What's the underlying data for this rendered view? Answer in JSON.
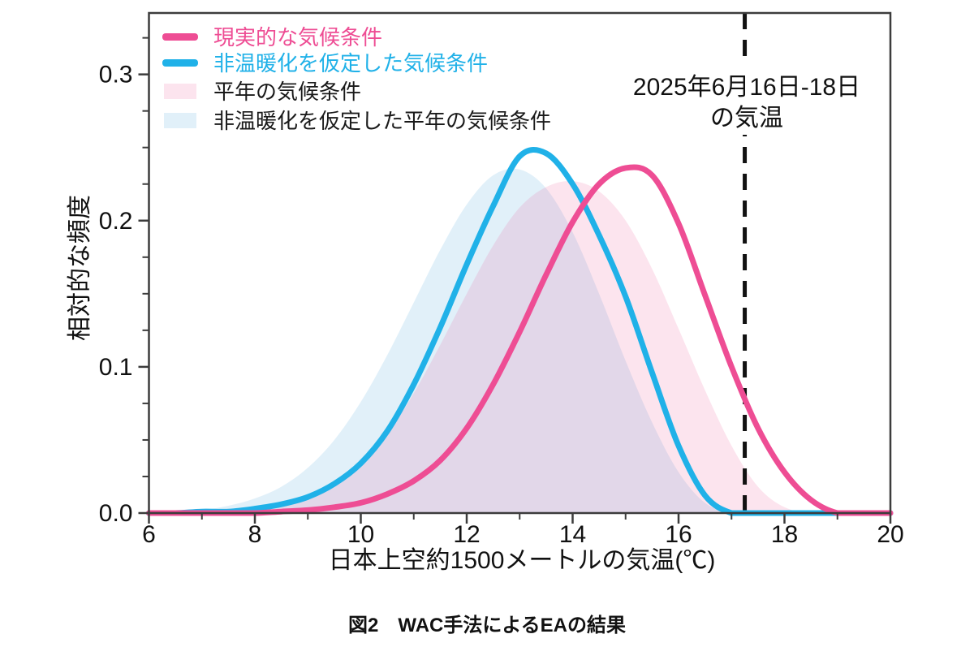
{
  "figure": {
    "caption": "図2　WAC手法によるEAの結果"
  },
  "colors": {
    "axis": "#3c3c3c",
    "text": "#111111",
    "annotation_line": "#111111",
    "pink_line": "#ee4d94",
    "blue_line": "#20b1e8",
    "pink_fill": "rgba(238,77,138,0.15)",
    "blue_fill": "rgba(90,170,220,0.18)"
  },
  "chart_data": {
    "type": "area",
    "title": "",
    "xlabel": "日本上空約1500メートルの気温(℃)",
    "ylabel": "相対的な頻度",
    "xlim": [
      6,
      20
    ],
    "ylim": [
      0,
      0.342
    ],
    "grid": false,
    "legend_position": "top-left",
    "x_major_ticks": [
      6,
      8,
      10,
      12,
      14,
      16,
      18,
      20
    ],
    "x_tick_labels": [
      "6",
      "8",
      "10",
      "12",
      "14",
      "16",
      "18",
      "20"
    ],
    "x_minor_ticks": [
      7,
      9,
      11,
      13,
      15,
      17,
      19
    ],
    "y_major_ticks": [
      0,
      0.1,
      0.2,
      0.3
    ],
    "y_tick_labels": [
      "0.0",
      "0.1",
      "0.2",
      "0.3"
    ],
    "y_minor_ticks": [
      0.025,
      0.05,
      0.075,
      0.125,
      0.15,
      0.175,
      0.225,
      0.25,
      0.275,
      0.325
    ],
    "x": [
      6,
      6.5,
      7,
      7.5,
      8,
      8.5,
      9,
      9.5,
      10,
      10.5,
      11,
      11.5,
      12,
      12.5,
      13,
      13.5,
      14,
      14.5,
      15,
      15.5,
      16,
      16.5,
      17,
      17.5,
      18,
      18.5,
      19,
      19.5,
      20
    ],
    "series": [
      {
        "name": "現実的な気候条件",
        "style": "line",
        "color": "#ee4d94",
        "peak": {
          "x": 15.1,
          "y": 0.237
        },
        "z": 3,
        "values": [
          0,
          0,
          0,
          0,
          0,
          0.001,
          0.002,
          0.004,
          0.007,
          0.013,
          0.022,
          0.036,
          0.058,
          0.088,
          0.124,
          0.163,
          0.199,
          0.225,
          0.236,
          0.231,
          0.198,
          0.149,
          0.1,
          0.058,
          0.028,
          0.009,
          0,
          0,
          0
        ]
      },
      {
        "name": "非温暖化を仮定した気候条件",
        "style": "line",
        "color": "#20b1e8",
        "peak": {
          "x": 13.1,
          "y": 0.248
        },
        "z": 2,
        "values": [
          0,
          0,
          0.001,
          0.001,
          0.003,
          0.006,
          0.011,
          0.02,
          0.034,
          0.056,
          0.088,
          0.127,
          0.17,
          0.21,
          0.244,
          0.246,
          0.225,
          0.19,
          0.148,
          0.096,
          0.046,
          0.012,
          0,
          0,
          0,
          0,
          0,
          0,
          0
        ]
      },
      {
        "name": "平年の気候条件",
        "style": "area",
        "color": "rgba(238,77,138,0.15)",
        "peak": {
          "x": 14.2,
          "y": 0.227
        },
        "z": 1,
        "values": [
          0,
          0,
          0,
          0.001,
          0.003,
          0.006,
          0.011,
          0.02,
          0.034,
          0.054,
          0.082,
          0.115,
          0.15,
          0.183,
          0.209,
          0.223,
          0.227,
          0.22,
          0.2,
          0.167,
          0.126,
          0.084,
          0.046,
          0.018,
          0.004,
          0,
          0,
          0,
          0
        ]
      },
      {
        "name": "非温暖化を仮定した平年の気候条件",
        "style": "area",
        "color": "rgba(90,170,220,0.18)",
        "peak": {
          "x": 12.9,
          "y": 0.236
        },
        "z": 0,
        "values": [
          0,
          0.001,
          0.002,
          0.005,
          0.01,
          0.018,
          0.031,
          0.05,
          0.076,
          0.108,
          0.144,
          0.18,
          0.211,
          0.231,
          0.235,
          0.222,
          0.192,
          0.15,
          0.104,
          0.062,
          0.028,
          0.007,
          0,
          0,
          0,
          0,
          0,
          0,
          0
        ]
      }
    ],
    "annotation": {
      "label_line1": "2025年6月16日-18日",
      "label_line2": "の気温",
      "x_value": 17.25
    }
  }
}
